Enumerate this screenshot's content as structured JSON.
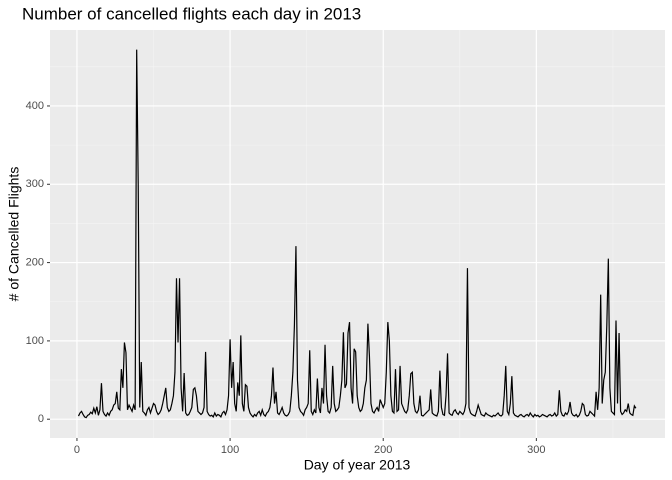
{
  "chart_data": {
    "type": "line",
    "title": "Number of cancelled flights each day in 2013",
    "x_label": "Day of year 2013",
    "y_label": "# of Cancelled Flights",
    "color": "#000000",
    "grid": true,
    "minor_grid": true,
    "xlim": [
      -17.6,
      384
    ],
    "ylim": [
      -24,
      497
    ],
    "xticks": [
      0,
      100,
      200,
      300
    ],
    "yticks": [
      0,
      100,
      200,
      300,
      400
    ],
    "x": [
      1,
      2,
      3,
      4,
      5,
      6,
      7,
      8,
      9,
      10,
      11,
      12,
      13,
      14,
      15,
      16,
      17,
      18,
      19,
      20,
      21,
      22,
      23,
      24,
      25,
      26,
      27,
      28,
      29,
      30,
      31,
      32,
      33,
      34,
      35,
      36,
      37,
      38,
      39,
      40,
      41,
      42,
      43,
      44,
      45,
      46,
      47,
      48,
      49,
      50,
      51,
      52,
      53,
      54,
      55,
      56,
      57,
      58,
      59,
      60,
      61,
      62,
      63,
      64,
      65,
      66,
      67,
      68,
      69,
      70,
      71,
      72,
      73,
      74,
      75,
      76,
      77,
      78,
      79,
      80,
      81,
      82,
      83,
      84,
      85,
      86,
      87,
      88,
      89,
      90,
      91,
      92,
      93,
      94,
      95,
      96,
      97,
      98,
      99,
      100,
      101,
      102,
      103,
      104,
      105,
      106,
      107,
      108,
      109,
      110,
      111,
      112,
      113,
      114,
      115,
      116,
      117,
      118,
      119,
      120,
      121,
      122,
      123,
      124,
      125,
      126,
      127,
      128,
      129,
      130,
      131,
      132,
      133,
      134,
      135,
      136,
      137,
      138,
      139,
      140,
      141,
      142,
      143,
      144,
      145,
      146,
      147,
      148,
      149,
      150,
      151,
      152,
      153,
      154,
      155,
      156,
      157,
      158,
      159,
      160,
      161,
      162,
      163,
      164,
      165,
      166,
      167,
      168,
      169,
      170,
      171,
      172,
      173,
      174,
      175,
      176,
      177,
      178,
      179,
      180,
      181,
      182,
      183,
      184,
      185,
      186,
      187,
      188,
      189,
      190,
      191,
      192,
      193,
      194,
      195,
      196,
      197,
      198,
      199,
      200,
      201,
      202,
      203,
      204,
      205,
      206,
      207,
      208,
      209,
      210,
      211,
      212,
      213,
      214,
      215,
      216,
      217,
      218,
      219,
      220,
      221,
      222,
      223,
      224,
      225,
      226,
      227,
      228,
      229,
      230,
      231,
      232,
      233,
      234,
      235,
      236,
      237,
      238,
      239,
      240,
      241,
      242,
      243,
      244,
      245,
      246,
      247,
      248,
      249,
      250,
      251,
      252,
      253,
      254,
      255,
      256,
      257,
      258,
      259,
      260,
      261,
      262,
      263,
      264,
      265,
      266,
      267,
      268,
      269,
      270,
      271,
      272,
      273,
      274,
      275,
      276,
      277,
      278,
      279,
      280,
      281,
      282,
      283,
      284,
      285,
      286,
      287,
      288,
      289,
      290,
      291,
      292,
      293,
      294,
      295,
      296,
      297,
      298,
      299,
      300,
      301,
      302,
      303,
      304,
      305,
      306,
      307,
      308,
      309,
      310,
      311,
      312,
      313,
      314,
      315,
      316,
      317,
      318,
      319,
      320,
      321,
      322,
      323,
      324,
      325,
      326,
      327,
      328,
      329,
      330,
      331,
      332,
      333,
      334,
      335,
      336,
      337,
      338,
      339,
      340,
      341,
      342,
      343,
      344,
      345,
      346,
      347,
      348,
      349,
      350,
      351,
      352,
      353,
      354,
      355,
      356,
      357,
      358,
      359,
      360,
      361,
      362,
      363,
      364,
      365
    ],
    "values": [
      4,
      8,
      10,
      6,
      3,
      2,
      5,
      6,
      9,
      7,
      14,
      8,
      16,
      5,
      12,
      46,
      10,
      6,
      4,
      8,
      5,
      10,
      12,
      18,
      20,
      35,
      14,
      12,
      64,
      40,
      98,
      85,
      12,
      18,
      14,
      10,
      18,
      12,
      472,
      300,
      15,
      73,
      10,
      8,
      5,
      12,
      15,
      8,
      14,
      20,
      18,
      10,
      6,
      8,
      12,
      20,
      30,
      40,
      15,
      10,
      12,
      20,
      30,
      60,
      180,
      98,
      180,
      40,
      10,
      59,
      8,
      5,
      6,
      10,
      15,
      38,
      40,
      30,
      10,
      8,
      6,
      8,
      15,
      86,
      10,
      6,
      4,
      5,
      3,
      8,
      4,
      6,
      5,
      3,
      8,
      10,
      6,
      12,
      30,
      102,
      40,
      73,
      20,
      10,
      47,
      30,
      107,
      20,
      10,
      44,
      42,
      15,
      8,
      5,
      3,
      6,
      4,
      8,
      10,
      5,
      12,
      6,
      4,
      8,
      10,
      15,
      30,
      66,
      20,
      35,
      8,
      6,
      10,
      15,
      8,
      5,
      4,
      6,
      10,
      30,
      60,
      120,
      221,
      50,
      15,
      10,
      8,
      5,
      12,
      15,
      20,
      88,
      10,
      6,
      12,
      8,
      52,
      15,
      8,
      40,
      20,
      95,
      30,
      10,
      8,
      15,
      68,
      20,
      10,
      12,
      15,
      30,
      50,
      111,
      40,
      45,
      110,
      124,
      40,
      20,
      90,
      86,
      30,
      15,
      10,
      12,
      20,
      40,
      50,
      122,
      80,
      20,
      10,
      8,
      12,
      15,
      10,
      25,
      20,
      15,
      20,
      60,
      124,
      100,
      30,
      10,
      8,
      64,
      10,
      12,
      68,
      20,
      15,
      10,
      8,
      12,
      30,
      58,
      60,
      20,
      10,
      8,
      12,
      30,
      5,
      4,
      6,
      8,
      10,
      12,
      38,
      8,
      6,
      5,
      4,
      10,
      62,
      15,
      6,
      5,
      30,
      84,
      8,
      6,
      5,
      10,
      12,
      8,
      6,
      10,
      8,
      6,
      10,
      20,
      193,
      15,
      8,
      6,
      5,
      4,
      10,
      18,
      12,
      6,
      5,
      4,
      8,
      6,
      5,
      4,
      3,
      5,
      4,
      6,
      8,
      5,
      4,
      6,
      30,
      68,
      10,
      6,
      20,
      55,
      8,
      5,
      4,
      3,
      5,
      6,
      4,
      3,
      5,
      6,
      4,
      8,
      5,
      3,
      6,
      4,
      5,
      3,
      4,
      6,
      5,
      4,
      3,
      5,
      6,
      4,
      5,
      8,
      4,
      6,
      37,
      10,
      5,
      4,
      8,
      6,
      10,
      22,
      8,
      5,
      4,
      6,
      3,
      5,
      10,
      20,
      18,
      6,
      4,
      5,
      10,
      8,
      6,
      4,
      35,
      12,
      40,
      159,
      20,
      50,
      60,
      120,
      205,
      40,
      10,
      8,
      6,
      126,
      20,
      110,
      10,
      6,
      8,
      12,
      10,
      20,
      8,
      6,
      5,
      17,
      14
    ]
  }
}
